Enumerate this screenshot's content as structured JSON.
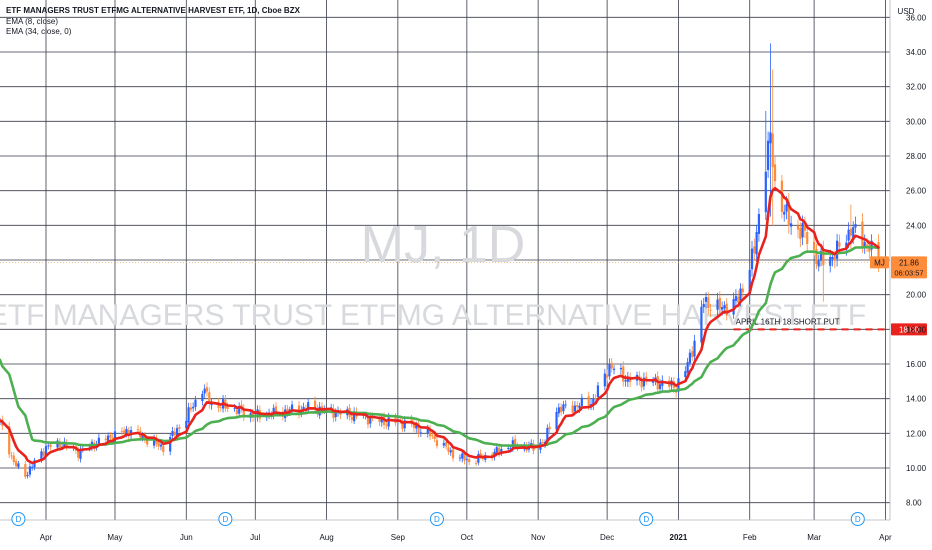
{
  "legend": {
    "title": "ETF MANAGERS TRUST ETFMG ALTERNATIVE HARVEST ETF, 1D, Cboe BZX",
    "ema_fast": "EMA (8, close)",
    "ema_slow": "EMA (34, close, 0)"
  },
  "watermark": {
    "symbol": "MJ, 1D",
    "name": "ETF MANAGERS TRUST ETFMG ALTERNATIVE HARVEST ETF"
  },
  "colors": {
    "up": "#2962ff",
    "down": "#ff8c3a",
    "ema_fast": "#e8221c",
    "ema_slow": "#4caf50",
    "grid": "#3a3d4a",
    "price_tag": "#ff8c3a",
    "level_line": "#e8221c"
  },
  "chart_data": {
    "type": "candlestick",
    "y_axis_unit": "USD",
    "ylim": [
      7.0,
      37.0
    ],
    "y_ticks": [
      "8.00",
      "10.00",
      "12.00",
      "14.00",
      "16.00",
      "18.00",
      "20.00",
      "22.00",
      "24.00",
      "26.00",
      "28.00",
      "30.00",
      "32.00",
      "34.00",
      "36.00"
    ],
    "x_range": [
      "2020-03-12",
      "2021-04-03"
    ],
    "x_ticks": [
      {
        "date": "2020-04-01",
        "label": "Apr"
      },
      {
        "date": "2020-05-01",
        "label": "May"
      },
      {
        "date": "2020-06-01",
        "label": "Jun"
      },
      {
        "date": "2020-07-01",
        "label": "Jul"
      },
      {
        "date": "2020-08-01",
        "label": "Aug"
      },
      {
        "date": "2020-09-01",
        "label": "Sep"
      },
      {
        "date": "2020-10-01",
        "label": "Oct"
      },
      {
        "date": "2020-11-01",
        "label": "Nov"
      },
      {
        "date": "2020-12-01",
        "label": "Dec"
      },
      {
        "date": "2021-01-01",
        "label": "2021"
      },
      {
        "date": "2021-02-01",
        "label": "Feb"
      },
      {
        "date": "2021-03-01",
        "label": "Mar"
      },
      {
        "date": "2021-04-01",
        "label": "Apr"
      }
    ],
    "price_path": [
      [
        "2020-03-12",
        12.6
      ],
      [
        "2020-03-18",
        10.3
      ],
      [
        "2020-03-23",
        9.6
      ],
      [
        "2020-04-01",
        11.2
      ],
      [
        "2020-04-08",
        11.4
      ],
      [
        "2020-04-15",
        10.9
      ],
      [
        "2020-04-22",
        11.4
      ],
      [
        "2020-05-01",
        11.9
      ],
      [
        "2020-05-08",
        12.2
      ],
      [
        "2020-05-15",
        11.6
      ],
      [
        "2020-05-22",
        11.2
      ],
      [
        "2020-06-01",
        12.9
      ],
      [
        "2020-06-08",
        14.6
      ],
      [
        "2020-06-12",
        13.7
      ],
      [
        "2020-06-20",
        13.5
      ],
      [
        "2020-07-01",
        13.0
      ],
      [
        "2020-07-15",
        13.3
      ],
      [
        "2020-07-25",
        13.5
      ],
      [
        "2020-08-05",
        13.2
      ],
      [
        "2020-08-15",
        13.0
      ],
      [
        "2020-08-25",
        12.7
      ],
      [
        "2020-09-05",
        12.6
      ],
      [
        "2020-09-15",
        11.9
      ],
      [
        "2020-09-25",
        10.8
      ],
      [
        "2020-10-02",
        10.4
      ],
      [
        "2020-10-10",
        10.7
      ],
      [
        "2020-10-20",
        11.3
      ],
      [
        "2020-10-30",
        11.2
      ],
      [
        "2020-11-04",
        11.6
      ],
      [
        "2020-11-09",
        13.4
      ],
      [
        "2020-11-16",
        13.5
      ],
      [
        "2020-11-25",
        13.9
      ],
      [
        "2020-12-02",
        15.9
      ],
      [
        "2020-12-10",
        15.1
      ],
      [
        "2020-12-20",
        15.0
      ],
      [
        "2020-12-31",
        14.7
      ],
      [
        "2021-01-04",
        15.6
      ],
      [
        "2021-01-08",
        17.3
      ],
      [
        "2021-01-12",
        19.6
      ],
      [
        "2021-01-20",
        19.2
      ],
      [
        "2021-01-27",
        19.7
      ],
      [
        "2021-02-03",
        22.5
      ],
      [
        "2021-02-08",
        27.8
      ],
      [
        "2021-02-10",
        29.0
      ],
      [
        "2021-02-12",
        26.3
      ],
      [
        "2021-02-18",
        24.2
      ],
      [
        "2021-02-25",
        23.5
      ],
      [
        "2021-03-03",
        21.9
      ],
      [
        "2021-03-10",
        22.3
      ],
      [
        "2021-03-17",
        23.8
      ],
      [
        "2021-03-24",
        22.9
      ],
      [
        "2021-03-29",
        21.86
      ]
    ],
    "spikes": [
      {
        "date": "2021-02-08",
        "high": 30.6,
        "low": 26.2
      },
      {
        "date": "2021-02-10",
        "high": 34.5,
        "low": 24.5
      },
      {
        "date": "2021-02-11",
        "high": 33.0,
        "low": 24.0
      },
      {
        "date": "2021-03-05",
        "high": 22.5,
        "low": 19.6
      },
      {
        "date": "2021-03-17",
        "high": 25.2,
        "low": 22.6
      }
    ],
    "dividend_markers": [
      "2020-03-20",
      "2020-06-18",
      "2020-09-18",
      "2020-12-18",
      "2021-03-20"
    ],
    "dividend_label": "D",
    "last_price": {
      "symbol": "MJ",
      "price": "21.86",
      "countdown": "06:03:57"
    },
    "level": {
      "price": 18.0,
      "label": "18.00",
      "annotation": "APRIL 16TH 18 SHORT PUT",
      "start": "2021-01-25"
    }
  }
}
